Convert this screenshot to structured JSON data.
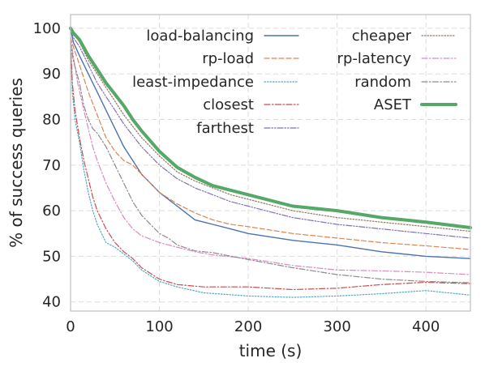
{
  "chart_data": {
    "type": "line",
    "title": "",
    "xlabel": "time (s)",
    "ylabel": "% of success queries",
    "xlim": [
      0,
      450
    ],
    "ylim": [
      38,
      103
    ],
    "xticks": [
      0,
      100,
      200,
      300,
      400
    ],
    "yticks": [
      40,
      50,
      60,
      70,
      80,
      90,
      100
    ],
    "grid": true,
    "grid_style": "dashed",
    "legend_location": "top-right",
    "series": [
      {
        "name": "load-balancing",
        "color": "#4c72b0",
        "dash": "solid",
        "width": 1.4,
        "x": [
          0,
          3,
          10,
          20,
          30,
          40,
          50,
          60,
          70,
          80,
          90,
          100,
          120,
          140,
          160,
          180,
          200,
          250,
          300,
          350,
          400,
          450
        ],
        "y": [
          100,
          97,
          94,
          90,
          86,
          82,
          78,
          74,
          71,
          68,
          66,
          64,
          61,
          58,
          57,
          56,
          55,
          53.5,
          52.5,
          51,
          50,
          49.5
        ]
      },
      {
        "name": "rp-load",
        "color": "#dd8452",
        "dash": "dashed",
        "width": 1.2,
        "x": [
          0,
          3,
          10,
          20,
          30,
          40,
          50,
          60,
          70,
          80,
          90,
          100,
          120,
          140,
          160,
          180,
          200,
          250,
          300,
          350,
          400,
          450
        ],
        "y": [
          98,
          96,
          92,
          86,
          81,
          76,
          73,
          71,
          70,
          68,
          66,
          64,
          61.5,
          59.5,
          58,
          57,
          56.5,
          55,
          54,
          53,
          52.3,
          51.5
        ]
      },
      {
        "name": "least-impedance",
        "color": "#55a8c2",
        "dash": "dotted",
        "width": 1.2,
        "x": [
          0,
          2,
          5,
          10,
          15,
          20,
          25,
          30,
          35,
          40,
          50,
          60,
          70,
          80,
          100,
          120,
          150,
          200,
          250,
          300,
          350,
          400,
          450
        ],
        "y": [
          97,
          86,
          80,
          75,
          69,
          64,
          60,
          57,
          55,
          53,
          52,
          50.5,
          49,
          47,
          44.5,
          43.3,
          42,
          41.3,
          41,
          41.3,
          41.8,
          42.5,
          41.5
        ]
      },
      {
        "name": "closest",
        "color": "#c44e52",
        "dash": "dashdot",
        "width": 1.2,
        "x": [
          0,
          2,
          5,
          10,
          15,
          20,
          25,
          30,
          40,
          50,
          60,
          70,
          80,
          100,
          120,
          150,
          200,
          250,
          300,
          350,
          400,
          450
        ],
        "y": [
          97,
          88,
          82,
          76,
          71,
          67,
          63,
          60,
          56,
          53,
          51,
          49.5,
          47.5,
          45,
          43.8,
          43.3,
          43.3,
          42.7,
          43,
          43.8,
          44.3,
          44
        ]
      },
      {
        "name": "farthest",
        "color": "#8172b3",
        "dash": "dashdotdot",
        "width": 1.2,
        "x": [
          0,
          3,
          10,
          20,
          30,
          40,
          50,
          60,
          80,
          100,
          120,
          140,
          160,
          180,
          200,
          250,
          300,
          350,
          400,
          450
        ],
        "y": [
          100,
          98,
          96,
          92,
          88,
          85,
          82,
          79,
          74,
          70,
          67,
          65,
          63.5,
          62,
          61,
          58.5,
          57,
          56,
          55,
          54
        ]
      },
      {
        "name": "cheaper",
        "color": "#937860",
        "dash": "dotted",
        "width": 1.2,
        "x": [
          0,
          3,
          10,
          20,
          30,
          40,
          50,
          60,
          80,
          100,
          120,
          140,
          160,
          180,
          200,
          250,
          300,
          350,
          400,
          450
        ],
        "y": [
          100,
          99,
          97,
          93,
          90,
          87,
          84,
          81,
          76,
          72,
          68.5,
          66.5,
          65,
          63.5,
          62.5,
          60,
          58.5,
          57.5,
          56.5,
          55.5
        ]
      },
      {
        "name": "rp-latency",
        "color": "#da8bc3",
        "dash": "dashdot",
        "width": 1.2,
        "x": [
          0,
          3,
          8,
          15,
          20,
          25,
          30,
          40,
          50,
          60,
          70,
          80,
          100,
          120,
          140,
          160,
          200,
          250,
          300,
          350,
          400,
          450
        ],
        "y": [
          98,
          94,
          88,
          82,
          78,
          74,
          71,
          66,
          62,
          58.5,
          56,
          54.5,
          53,
          52,
          51,
          50.3,
          49.5,
          48,
          47,
          46.8,
          46.5,
          46
        ]
      },
      {
        "name": "random",
        "color": "#8c8c8c",
        "dash": "dashdot",
        "width": 1.2,
        "x": [
          0,
          3,
          10,
          15,
          20,
          25,
          30,
          40,
          50,
          60,
          70,
          80,
          90,
          100,
          110,
          120,
          140,
          160,
          200,
          250,
          300,
          350,
          400,
          450
        ],
        "y": [
          97,
          93,
          88,
          83,
          80,
          78,
          77,
          74,
          70,
          66,
          62,
          59,
          57,
          55,
          54,
          52.5,
          51.2,
          50.8,
          49.3,
          47.5,
          46,
          45,
          44.5,
          44.2
        ]
      },
      {
        "name": "ASET",
        "color": "#55a868",
        "dash": "solid",
        "width": 4,
        "x": [
          0,
          3,
          10,
          20,
          30,
          40,
          50,
          60,
          70,
          80,
          100,
          120,
          140,
          160,
          180,
          200,
          250,
          300,
          350,
          400,
          450
        ],
        "y": [
          100,
          99,
          97.5,
          94,
          91,
          88,
          85.5,
          83,
          80,
          77.5,
          73,
          69.5,
          67.3,
          65.5,
          64.5,
          63.5,
          61,
          60,
          58.5,
          57.5,
          56.3
        ]
      }
    ]
  }
}
